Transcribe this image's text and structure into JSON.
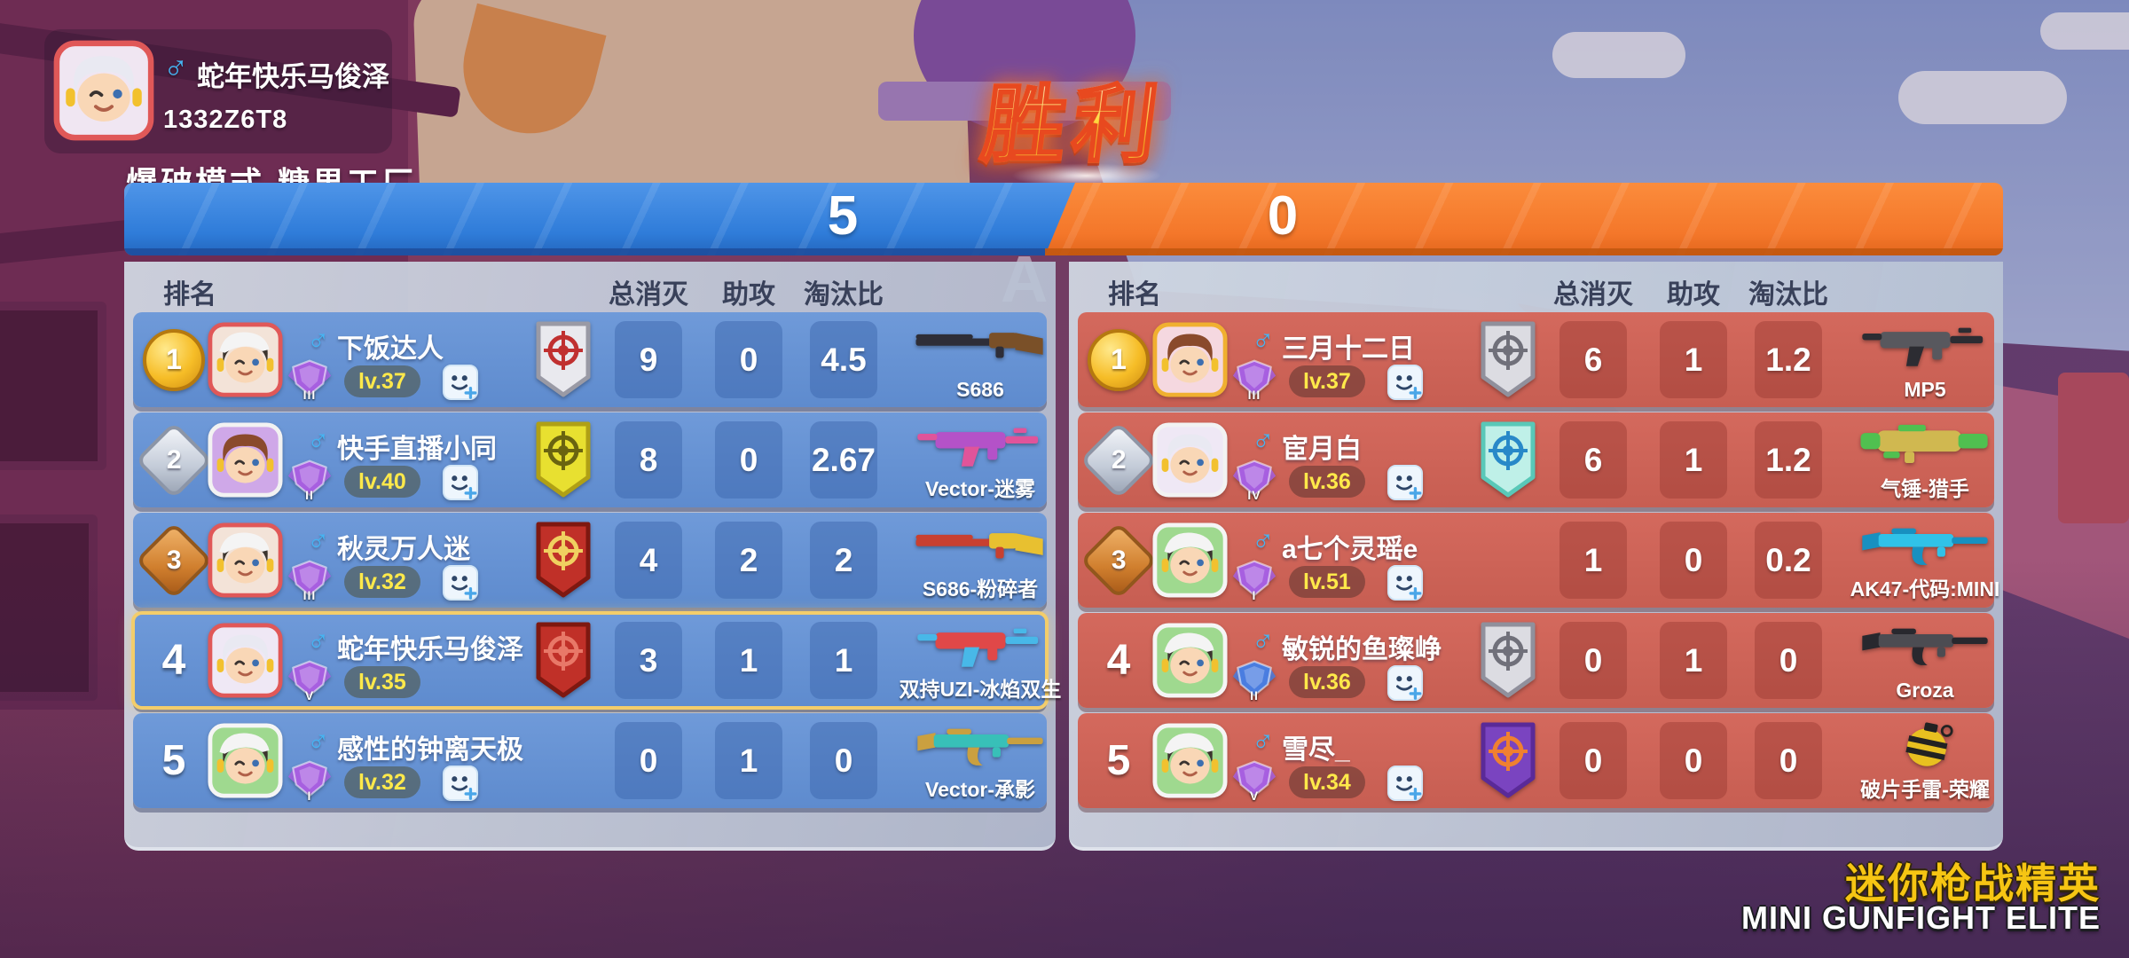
{
  "result_banner": "胜利",
  "icons": {
    "male_symbol": "♂"
  },
  "player_card": {
    "name": "蛇年快乐马俊泽",
    "id": "1332Z6T8",
    "mode": "爆破模式-糖果工厂"
  },
  "score_bar": {
    "blue_score": "5",
    "red_score": "0"
  },
  "table_headers": {
    "rank": "排名",
    "kills": "总消灭",
    "assists": "助攻",
    "ratio": "淘汰比"
  },
  "background": {
    "watermark_letter": "A"
  },
  "colors": {
    "team_blue": "#2f7cd9",
    "team_red": "#f4772a",
    "row_blue": "#5e8bce",
    "row_red": "#c75e52",
    "highlight_border": "#f3cd6b",
    "level_text": "#ffe94a",
    "logo_gold": "#f6c513",
    "male_icon": "#45b4f2"
  },
  "teams": {
    "blue": {
      "rows": [
        {
          "rank": "1",
          "medal": "gold",
          "name": "下饭达人",
          "level": "lv.37",
          "tier": "III",
          "tier_color": "#a75fe0",
          "badge": {
            "bg": "#e9e9ee",
            "border": "#9a9aa5",
            "motif": "#c03030"
          },
          "kills": "9",
          "assists": "0",
          "ratio": "4.5",
          "weapon_name": "S686",
          "weapon_type": "shotgun",
          "weapon_colors": [
            "#7a5028",
            "#2e2e38"
          ],
          "friend_add": true,
          "highlight": false,
          "avatar": {
            "bg": "#f3e3d8",
            "frame": "#e05858",
            "variant": "boy"
          }
        },
        {
          "rank": "2",
          "medal": "silver",
          "name": "快手直播小同",
          "level": "lv.40",
          "tier": "II",
          "tier_color": "#a75fe0",
          "badge": {
            "bg": "#e8e030",
            "border": "#b0a015",
            "motif": "#6a6410"
          },
          "kills": "8",
          "assists": "0",
          "ratio": "2.67",
          "weapon_name": "Vector-迷雾",
          "weapon_type": "smg",
          "weapon_colors": [
            "#b452c8",
            "#e0549a"
          ],
          "friend_add": true,
          "highlight": false,
          "avatar": {
            "bg": "#cfa8e8",
            "frame": "#f2f2f2",
            "variant": "girl"
          }
        },
        {
          "rank": "3",
          "medal": "bronze",
          "name": "秋灵万人迷",
          "level": "lv.32",
          "tier": "III",
          "tier_color": "#a75fe0",
          "badge": {
            "bg": "#c03028",
            "border": "#7e1810",
            "motif": "#f0d060"
          },
          "kills": "4",
          "assists": "2",
          "ratio": "2",
          "weapon_name": "S686-粉碎者",
          "weapon_type": "shotgun",
          "weapon_colors": [
            "#e8c030",
            "#c84030"
          ],
          "friend_add": true,
          "highlight": false,
          "avatar": {
            "bg": "#f3e3d8",
            "frame": "#e05858",
            "variant": "boy"
          }
        },
        {
          "rank": "4",
          "medal": "none",
          "name": "蛇年快乐马俊泽",
          "level": "lv.35",
          "tier": "V",
          "tier_color": "#a75fe0",
          "badge": {
            "bg": "#c03028",
            "border": "#7e1810",
            "motif": "#e87868"
          },
          "kills": "3",
          "assists": "1",
          "ratio": "1",
          "weapon_name": "双持UZI-冰焰双生",
          "weapon_type": "smg",
          "weapon_colors": [
            "#e04848",
            "#48b8e8"
          ],
          "friend_add": false,
          "highlight": true,
          "avatar": {
            "bg": "#efe8f5",
            "frame": "#e05858",
            "variant": "wolf"
          }
        },
        {
          "rank": "5",
          "medal": "none",
          "name": "感性的钟离天极",
          "level": "lv.32",
          "tier": "I",
          "tier_color": "#a75fe0",
          "badge": null,
          "kills": "0",
          "assists": "1",
          "ratio": "0",
          "weapon_name": "Vector-承影",
          "weapon_type": "rifle",
          "weapon_colors": [
            "#38c0b8",
            "#caa040"
          ],
          "friend_add": true,
          "highlight": false,
          "avatar": {
            "bg": "#9fd98f",
            "frame": "#f5f5f5",
            "variant": "boy"
          }
        }
      ]
    },
    "red": {
      "rows": [
        {
          "rank": "1",
          "medal": "gold",
          "name": "三月十二日",
          "level": "lv.37",
          "tier": "III",
          "tier_color": "#a75fe0",
          "badge": {
            "bg": "#dcdce2",
            "border": "#90909c",
            "motif": "#70707a"
          },
          "kills": "6",
          "assists": "1",
          "ratio": "1.2",
          "weapon_name": "MP5",
          "weapon_type": "smg",
          "weapon_colors": [
            "#58585e",
            "#2c2c32"
          ],
          "friend_add": true,
          "highlight": false,
          "avatar": {
            "bg": "#f5d8e0",
            "frame": "#f0b030",
            "variant": "girl"
          }
        },
        {
          "rank": "2",
          "medal": "silver",
          "name": "宦月白",
          "level": "lv.36",
          "tier": "IV",
          "tier_color": "#a75fe0",
          "badge": {
            "bg": "#bff0e8",
            "border": "#59c8b8",
            "motif": "#2888c8"
          },
          "kills": "6",
          "assists": "1",
          "ratio": "1.2",
          "weapon_name": "气锤-猎手",
          "weapon_type": "launcher",
          "weapon_colors": [
            "#d0b850",
            "#50c050"
          ],
          "friend_add": true,
          "highlight": false,
          "avatar": {
            "bg": "#efe8f5",
            "frame": "#f2f2f2",
            "variant": "wolf"
          }
        },
        {
          "rank": "3",
          "medal": "bronze",
          "name": "a七个灵瑶e",
          "level": "lv.51",
          "tier": "I",
          "tier_color": "#a75fe0",
          "badge": null,
          "kills": "1",
          "assists": "0",
          "ratio": "0.2",
          "weapon_name": "AK47-代码:MINI",
          "weapon_type": "rifle",
          "weapon_colors": [
            "#30c2e8",
            "#1890c0"
          ],
          "friend_add": true,
          "highlight": false,
          "avatar": {
            "bg": "#9fd98f",
            "frame": "#f5f5f5",
            "variant": "boy"
          }
        },
        {
          "rank": "4",
          "medal": "none",
          "name": "敏锐的鱼璨峥",
          "level": "lv.36",
          "tier": "II",
          "tier_color": "#4a7de0",
          "badge": {
            "bg": "#dcdce2",
            "border": "#90909c",
            "motif": "#70707a"
          },
          "kills": "0",
          "assists": "1",
          "ratio": "0",
          "weapon_name": "Groza",
          "weapon_type": "rifle",
          "weapon_colors": [
            "#4c4c52",
            "#28282e"
          ],
          "friend_add": true,
          "highlight": false,
          "avatar": {
            "bg": "#9fd98f",
            "frame": "#f5f5f5",
            "variant": "boy"
          }
        },
        {
          "rank": "5",
          "medal": "none",
          "name": "雪尽_",
          "level": "lv.34",
          "tier": "V",
          "tier_color": "#a75fe0",
          "badge": {
            "bg": "#7a44c0",
            "border": "#5a2a98",
            "motif": "#f08030"
          },
          "kills": "0",
          "assists": "0",
          "ratio": "0",
          "weapon_name": "破片手雷-荣耀",
          "weapon_type": "grenade",
          "weapon_colors": [
            "#e8c020",
            "#222222"
          ],
          "friend_add": true,
          "highlight": false,
          "avatar": {
            "bg": "#9fd98f",
            "frame": "#f5f5f5",
            "variant": "boy"
          }
        }
      ]
    }
  },
  "logo": {
    "cn": "迷你枪战精英",
    "en": "MINI GUNFIGHT ELITE"
  }
}
